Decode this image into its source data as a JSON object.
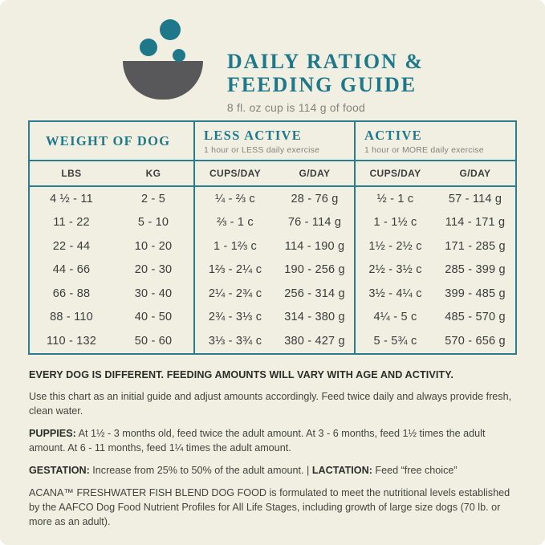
{
  "header": {
    "title_line1": "DAILY RATION &",
    "title_line2": "FEEDING GUIDE",
    "subtitle": "8 fl. oz cup is 114 g of food",
    "icon": "dog-bowl-with-kibble-icon"
  },
  "colors": {
    "background": "#f1efe2",
    "teal": "#1e7889",
    "table_border_teal": "#2a7d8e",
    "bowl_gray": "#58585a",
    "text_dark": "#3c3c3c",
    "text_gray": "#85847a"
  },
  "table": {
    "sections": [
      {
        "title": "WEIGHT OF DOG",
        "subtitle": ""
      },
      {
        "title": "LESS ACTIVE",
        "subtitle": "1 hour or LESS daily exercise"
      },
      {
        "title": "ACTIVE",
        "subtitle": "1 hour or MORE daily exercise"
      }
    ],
    "columns": [
      "LBS",
      "KG",
      "CUPS/DAY",
      "G/DAY",
      "CUPS/DAY",
      "G/DAY"
    ],
    "rows": [
      [
        "4 ½ - 11",
        "2 - 5",
        "¼ - ⅔ c",
        "28 - 76 g",
        "½ - 1 c",
        "57 - 114 g"
      ],
      [
        "11 - 22",
        "5 - 10",
        "⅔ - 1 c",
        "76 - 114 g",
        "1 - 1½ c",
        "114 - 171 g"
      ],
      [
        "22 - 44",
        "10 - 20",
        "1 - 1⅔ c",
        "114 - 190 g",
        "1½ - 2½ c",
        "171 - 285 g"
      ],
      [
        "44 - 66",
        "20 - 30",
        "1⅔ - 2¼ c",
        "190 - 256 g",
        "2½ - 3½ c",
        "285 - 399 g"
      ],
      [
        "66 - 88",
        "30 - 40",
        "2¼ - 2¾ c",
        "256 - 314 g",
        "3½ - 4¼ c",
        "399 - 485 g"
      ],
      [
        "88 - 110",
        "40 - 50",
        "2¾ - 3⅓ c",
        "314 - 380 g",
        "4¼ - 5 c",
        "485 - 570 g"
      ],
      [
        "110 - 132",
        "50 - 60",
        "3⅓ - 3¾ c",
        "380 - 427 g",
        "5 - 5¾ c",
        "570 - 656 g"
      ]
    ]
  },
  "notes": {
    "headline": "EVERY DOG IS DIFFERENT. FEEDING AMOUNTS WILL VARY WITH AGE AND ACTIVITY.",
    "intro": "Use this chart as an initial guide and adjust amounts accordingly. Feed twice daily and always provide fresh, clean water.",
    "puppies_label": "PUPPIES:",
    "puppies_text": "At 1½ - 3 months old, feed twice the adult amount. At 3 - 6 months, feed 1½ times the adult amount. At 6 - 11 months, feed 1¼ times the adult amount.",
    "gestation_label": "GESTATION:",
    "gestation_text": "Increase from 25% to 50% of the adult amount.",
    "separator": "|",
    "lactation_label": "LACTATION:",
    "lactation_text": "Feed “free choice”",
    "aafco": "ACANA™ FRESHWATER FISH BLEND DOG FOOD is formulated to meet the nutritional levels established by the AAFCO Dog Food Nutrient Profiles for All Life Stages, including growth of large size dogs (70 lb. or more as an adult)."
  }
}
